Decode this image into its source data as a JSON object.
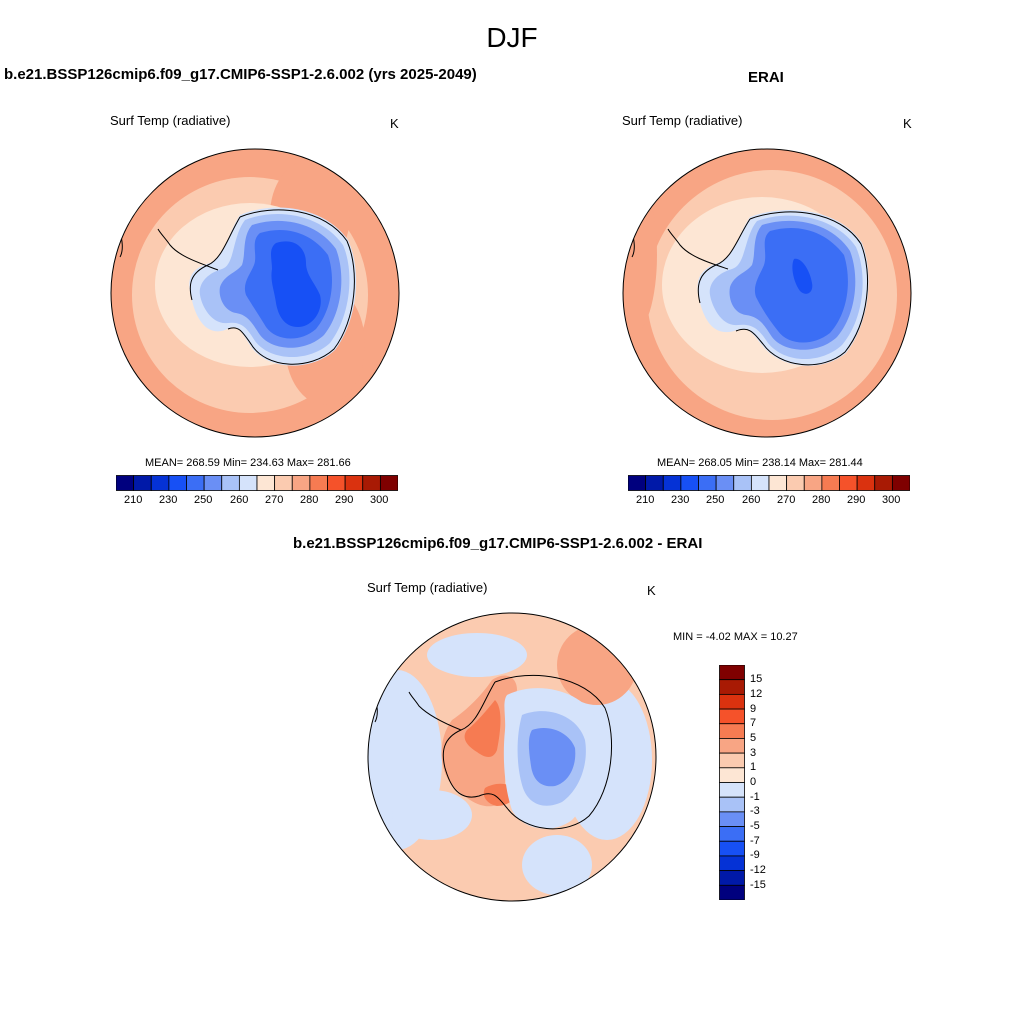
{
  "figure": {
    "season": "DJF"
  },
  "panels": {
    "model": {
      "title": "b.e21.BSSP126cmip6.f09_g17.CMIP6-SSP1-2.6.002 (yrs 2025-2049)",
      "variable": "Surf Temp (radiative)",
      "units": "K",
      "stats": "MEAN= 268.59  Min= 234.63  Max= 281.66"
    },
    "obs": {
      "title": "ERAI",
      "variable": "Surf Temp (radiative)",
      "units": "K",
      "stats": "MEAN= 268.05  Min= 238.14  Max= 281.44"
    },
    "diff": {
      "title": "b.e21.BSSP126cmip6.f09_g17.CMIP6-SSP1-2.6.002 - ERAI",
      "variable": "Surf Temp (radiative)",
      "units": "K",
      "stats": "MIN =  -4.02 MAX =  10.27"
    }
  },
  "colorbars": {
    "abs": {
      "colors": [
        "#00007e",
        "#0019a8",
        "#0532d6",
        "#1750f5",
        "#3b6ef5",
        "#6a8ff5",
        "#a9c2f7",
        "#d5e3fb",
        "#fde6d4",
        "#fbcbb0",
        "#f8a584",
        "#f67b52",
        "#f5522a",
        "#da320f",
        "#a81a04",
        "#7f0000"
      ],
      "tick_labels": [
        "210",
        "230",
        "250",
        "260",
        "270",
        "280",
        "290",
        "300"
      ]
    },
    "diff": {
      "colors": [
        "#7f0000",
        "#a81a04",
        "#da320f",
        "#f5522a",
        "#f67b52",
        "#f8a584",
        "#fbcbb0",
        "#fde6d4",
        "#d5e3fb",
        "#a9c2f7",
        "#6a8ff5",
        "#3b6ef5",
        "#1750f5",
        "#0532d6",
        "#0019a8",
        "#00007e"
      ],
      "tick_labels": [
        "15",
        "12",
        "9",
        "7",
        "5",
        "3",
        "1",
        "0",
        "-1",
        "-3",
        "-5",
        "-7",
        "-9",
        "-12",
        "-15"
      ]
    }
  },
  "map_colors": {
    "ocean_warm": "#f8a584",
    "ocean_mid": "#fbcbb0",
    "ocean_light": "#fde6d4",
    "ice_pale": "#d5e3fb",
    "ice_light": "#a9c2f7",
    "ice_mid": "#6a8ff5",
    "ice_blue": "#3b6ef5",
    "ice_deep": "#1750f5",
    "diff_base": "#fbcbb0",
    "diff_neg": "#d5e3fb",
    "diff_neg2": "#a9c2f7",
    "diff_pos": "#f8a584",
    "diff_pos2": "#f67b52"
  }
}
